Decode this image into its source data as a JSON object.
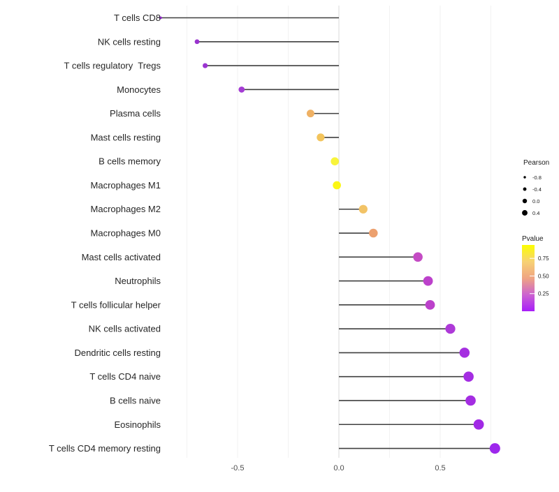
{
  "chart_data": {
    "type": "lollipop",
    "title": "",
    "xlabel": "",
    "ylabel": "",
    "x_ticks": [
      {
        "value": -0.5,
        "label": "-0.5"
      },
      {
        "value": 0.0,
        "label": "0.0"
      },
      {
        "value": 0.5,
        "label": "0.5"
      }
    ],
    "grid_values": [
      -0.75,
      -0.5,
      -0.25,
      0,
      0.25,
      0.5,
      0.75
    ],
    "xlim": [
      -0.89,
      0.81
    ],
    "grid": "on",
    "points": [
      {
        "label": "T cells CD8",
        "pearson": -0.88,
        "pvalue_approx": 0.001,
        "color": "#8F27C7"
      },
      {
        "label": "NK cells resting",
        "pearson": -0.7,
        "pvalue_approx": 0.01,
        "color": "#9933CE"
      },
      {
        "label": "T cells regulatory  Tregs",
        "pearson": -0.66,
        "pvalue_approx": 0.02,
        "color": "#9B34D1"
      },
      {
        "label": "Monocytes",
        "pearson": -0.48,
        "pvalue_approx": 0.1,
        "color": "#A43CD4"
      },
      {
        "label": "Plasma cells",
        "pearson": -0.14,
        "pvalue_approx": 0.6,
        "color": "#EFB164"
      },
      {
        "label": "Mast cells resting",
        "pearson": -0.09,
        "pvalue_approx": 0.7,
        "color": "#F3C45C"
      },
      {
        "label": "B cells memory",
        "pearson": -0.02,
        "pvalue_approx": 0.9,
        "color": "#F8F43B"
      },
      {
        "label": "Macrophages M1",
        "pearson": -0.01,
        "pvalue_approx": 0.92,
        "color": "#FBF614"
      },
      {
        "label": "Macrophages M2",
        "pearson": 0.12,
        "pvalue_approx": 0.7,
        "color": "#F2C366"
      },
      {
        "label": "Macrophages M0",
        "pearson": 0.17,
        "pvalue_approx": 0.52,
        "color": "#ECA06E"
      },
      {
        "label": "Mast cells activated",
        "pearson": 0.39,
        "pvalue_approx": 0.22,
        "color": "#C44BC4"
      },
      {
        "label": "Neutrophils",
        "pearson": 0.44,
        "pvalue_approx": 0.18,
        "color": "#BC41CB"
      },
      {
        "label": "T cells follicular helper",
        "pearson": 0.45,
        "pvalue_approx": 0.18,
        "color": "#BC41CB"
      },
      {
        "label": "NK cells activated",
        "pearson": 0.55,
        "pvalue_approx": 0.12,
        "color": "#AE3AD8"
      },
      {
        "label": "Dendritic cells resting",
        "pearson": 0.62,
        "pvalue_approx": 0.08,
        "color": "#A52FE0"
      },
      {
        "label": "T cells CD4 naive",
        "pearson": 0.64,
        "pvalue_approx": 0.07,
        "color": "#A42DE2"
      },
      {
        "label": "B cells naive",
        "pearson": 0.65,
        "pvalue_approx": 0.07,
        "color": "#A42DE2"
      },
      {
        "label": "Eosinophils",
        "pearson": 0.69,
        "pvalue_approx": 0.05,
        "color": "#A129E5"
      },
      {
        "label": "T cells CD4 memory resting",
        "pearson": 0.77,
        "pvalue_approx": 0.03,
        "color": "#9D27EC"
      }
    ],
    "legend_size": {
      "title": "Pearson",
      "values": [
        "-0.8",
        "-0.4",
        "0.0",
        "0.4"
      ],
      "dot_color": "#000000"
    },
    "legend_color": {
      "title": "Pvalue",
      "ticks": [
        "0.75",
        "0.50",
        "0.25"
      ],
      "range": [
        0.0,
        0.94
      ],
      "gradient": [
        "#FCFE00",
        "#F7D274",
        "#EFA482",
        "#CC63D0",
        "#A81EF9"
      ]
    },
    "colors": {
      "segment": "#3F3F3F",
      "zero_line": "#D8D8D8",
      "grid_line": "#F2F2F2",
      "axis_text": "#4d4d4d",
      "label_text": "#262626",
      "background": "#ffffff"
    }
  }
}
